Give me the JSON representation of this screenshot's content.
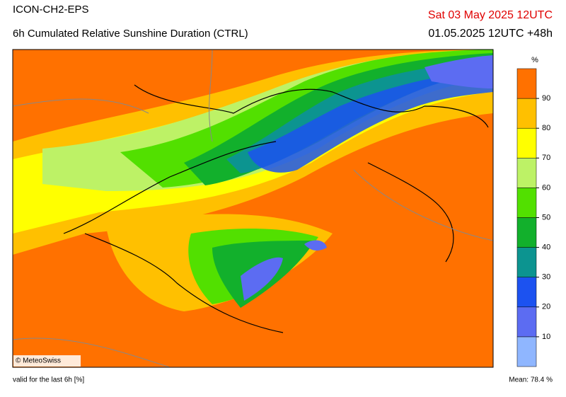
{
  "header": {
    "model": "ICON-CH2-EPS",
    "product": "6h Cumulated Relative Sunshine Duration (CTRL)",
    "valid_time": "Sat 03 May 2025 12UTC",
    "run": "01.05.2025 12UTC +48h"
  },
  "colorbar": {
    "unit": "%",
    "range": [
      0,
      100
    ],
    "ticks": [
      10,
      20,
      30,
      40,
      50,
      60,
      70,
      80,
      90
    ],
    "colors": [
      "#8fb6ff",
      "#5c6cf2",
      "#1c52f0",
      "#0c9490",
      "#12b02c",
      "#52e000",
      "#bdf266",
      "#ffff00",
      "#ffc000",
      "#ff7100"
    ]
  },
  "credit": "© MeteoSwiss",
  "footer": {
    "validity": "valid for the last 6h [%]",
    "mean": "Mean:  78.4 %"
  }
}
